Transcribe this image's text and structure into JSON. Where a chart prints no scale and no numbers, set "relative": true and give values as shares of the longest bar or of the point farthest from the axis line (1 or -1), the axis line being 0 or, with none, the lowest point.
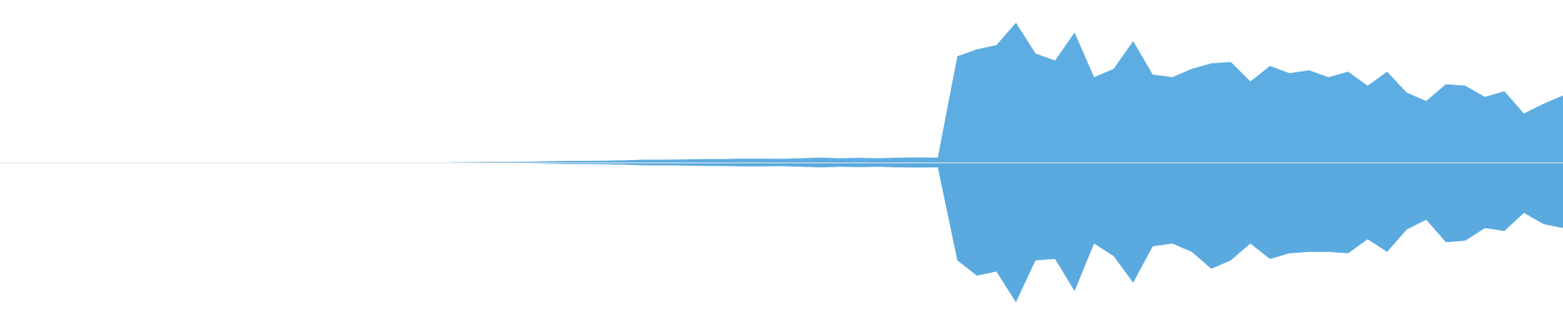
{
  "chart_data": {
    "type": "area",
    "relative": true,
    "categories": [
      null,
      null,
      null,
      null,
      null,
      null,
      null,
      null,
      null,
      null,
      null,
      null,
      null,
      null,
      null,
      null,
      null,
      null,
      null,
      null,
      null,
      null,
      null,
      null,
      null,
      null,
      null,
      null,
      null,
      null,
      null,
      null,
      null,
      null,
      null,
      null,
      null,
      null,
      null,
      null,
      null,
      null,
      null,
      null,
      null,
      null,
      null,
      null,
      null,
      null,
      null,
      null,
      null,
      null,
      null,
      null,
      null,
      null,
      null,
      null,
      null,
      null,
      null,
      null,
      null,
      null,
      null,
      null,
      null,
      null,
      null,
      null,
      null,
      null,
      null,
      null,
      null,
      null,
      null,
      null,
      null
    ],
    "series": [
      {
        "color": "#5dade2",
        "values": [
          null,
          null,
          null,
          null,
          null,
          null,
          null,
          null,
          null,
          null,
          null,
          null,
          null,
          null,
          null,
          null,
          null,
          null,
          null,
          null,
          null,
          null,
          null,
          0.002,
          0.003,
          0.005,
          0.005,
          0.006,
          0.008,
          0.012,
          0.012,
          0.013,
          0.016,
          0.02,
          0.02,
          0.022,
          0.024,
          0.025,
          0.027,
          0.028,
          0.026,
          0.03,
          0.035,
          0.03,
          0.034,
          0.03,
          0.035,
          0.036,
          0.035,
          0.76,
          0.81,
          0.84,
          1.0,
          0.78,
          0.73,
          0.93,
          0.61,
          0.67,
          0.87,
          0.63,
          0.61,
          0.67,
          0.71,
          0.72,
          0.58,
          0.69,
          0.64,
          0.66,
          0.61,
          0.65,
          0.55,
          0.65,
          0.5,
          0.44,
          0.56,
          0.55,
          0.47,
          0.51,
          0.35,
          0.42,
          0.48
        ]
      },
      {
        "color": "#5aaadf",
        "values": [
          null,
          null,
          null,
          null,
          null,
          null,
          null,
          null,
          null,
          null,
          null,
          null,
          null,
          null,
          null,
          null,
          null,
          null,
          null,
          null,
          null,
          null,
          null,
          -0.002,
          -0.003,
          -0.005,
          -0.005,
          -0.006,
          -0.008,
          -0.012,
          -0.012,
          -0.013,
          -0.016,
          -0.02,
          -0.02,
          -0.022,
          -0.024,
          -0.025,
          -0.027,
          -0.028,
          -0.026,
          -0.03,
          -0.035,
          -0.03,
          -0.034,
          -0.03,
          -0.035,
          -0.036,
          -0.035,
          -0.7,
          -0.81,
          -0.78,
          -1.0,
          -0.7,
          -0.69,
          -0.92,
          -0.58,
          -0.67,
          -0.86,
          -0.6,
          -0.58,
          -0.64,
          -0.76,
          -0.7,
          -0.58,
          -0.69,
          -0.65,
          -0.64,
          -0.64,
          -0.65,
          -0.55,
          -0.64,
          -0.48,
          -0.41,
          -0.57,
          -0.56,
          -0.47,
          -0.49,
          -0.36,
          -0.44,
          -0.47
        ]
      }
    ]
  }
}
